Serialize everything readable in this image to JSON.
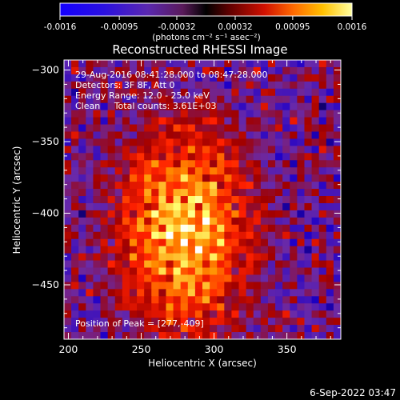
{
  "colorbar": {
    "ticks": [
      "-0.0016",
      "-0.00095",
      "-0.00032",
      "0.00032",
      "0.00095",
      "0.0016"
    ],
    "tick_values": [
      -0.0016,
      -0.00095,
      -0.00032,
      0.00032,
      0.00095,
      0.0016
    ],
    "range": [
      -0.0016,
      0.0016
    ],
    "unit_label": "(photons cm⁻² s⁻¹ asec⁻²)"
  },
  "chart_data": {
    "type": "heatmap",
    "title": "Reconstructed RHESSI Image",
    "xlabel": "Heliocentric X (arcsec)",
    "ylabel": "Heliocentric Y (arcsec)",
    "xlim": [
      197,
      387
    ],
    "ylim": [
      -488,
      -293
    ],
    "xticks": [
      200,
      250,
      300,
      350
    ],
    "yticks": [
      -300,
      -350,
      -400,
      -450
    ],
    "peak": {
      "x": 277,
      "y": -409
    },
    "colormap": [
      "#000000",
      "#1e00c8",
      "#6a2aa8",
      "#a00000",
      "#ff2000",
      "#ff9000",
      "#ffff70",
      "#ffffff"
    ]
  },
  "annotations": {
    "time_range": "29-Aug-2016 08:41:28.000 to 08:47:28.000",
    "detectors": "Detectors: 3F 8F, Att 0",
    "energy": "Energy Range: 12.0 - 25.0 keV",
    "clean": "Clean     Total counts: 3.61E+03",
    "peak_text": "Position of Peak = [277,-409]"
  },
  "footer": {
    "date": "6-Sep-2022 03:47"
  }
}
